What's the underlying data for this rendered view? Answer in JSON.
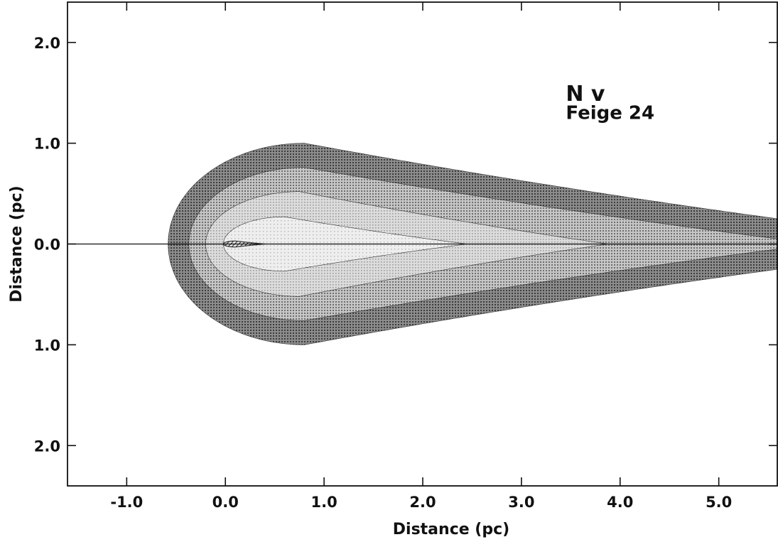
{
  "chart_data": {
    "type": "area",
    "title": "",
    "annotations": [
      {
        "text": "N v",
        "x": 3.45,
        "y": 1.42,
        "size": "large"
      },
      {
        "text": "Feige 24",
        "x": 3.45,
        "y": 1.24,
        "size": "medium"
      }
    ],
    "xlabel": "Distance (pc)",
    "ylabel": "Distance (pc)",
    "xlim": [
      -1.6,
      5.6
    ],
    "ylim": [
      -2.4,
      2.4
    ],
    "x_ticks": [
      -1.0,
      0.0,
      1.0,
      2.0,
      3.0,
      4.0,
      5.0
    ],
    "x_tick_labels": [
      "-1.0",
      "0.0",
      "1.0",
      "2.0",
      "3.0",
      "4.0",
      "5.0"
    ],
    "y_ticks": [
      2.0,
      1.0,
      0.0,
      -1.0,
      -2.0
    ],
    "y_tick_labels": [
      "2.0",
      "1.0",
      "0.0",
      "1.0",
      "2.0"
    ],
    "grid": false,
    "star_position": [
      0.0,
      0.0
    ],
    "contours": [
      {
        "level": 1,
        "shade": "darkest",
        "color": "#6e6e6e",
        "x_back": -0.58,
        "x_peak": 0.8,
        "half_width_max": 1.0,
        "x_tip": 5.6,
        "half_width_tip": 0.25
      },
      {
        "level": 2,
        "shade": "dark",
        "color": "#a4a4a4",
        "x_back": -0.37,
        "x_peak": 0.8,
        "half_width_max": 0.76,
        "x_tip": 5.6,
        "half_width_tip": 0.05
      },
      {
        "level": 3,
        "shade": "medium",
        "color": "#c2c2c2",
        "x_back": -0.2,
        "x_peak": 0.75,
        "half_width_max": 0.52,
        "x_tip": 3.88,
        "half_width_tip": 0.0
      },
      {
        "level": 4,
        "shade": "light",
        "color": "#dedede",
        "x_back": -0.02,
        "x_peak": 0.6,
        "half_width_max": 0.27,
        "x_tip": 2.45,
        "half_width_tip": 0.0
      },
      {
        "level": 5,
        "shade": "hatched",
        "color": "#7a7a7a",
        "x_back": -0.02,
        "x_peak": 0.1,
        "half_width_max": 0.03,
        "x_tip": 0.4,
        "half_width_tip": 0.0
      }
    ]
  }
}
